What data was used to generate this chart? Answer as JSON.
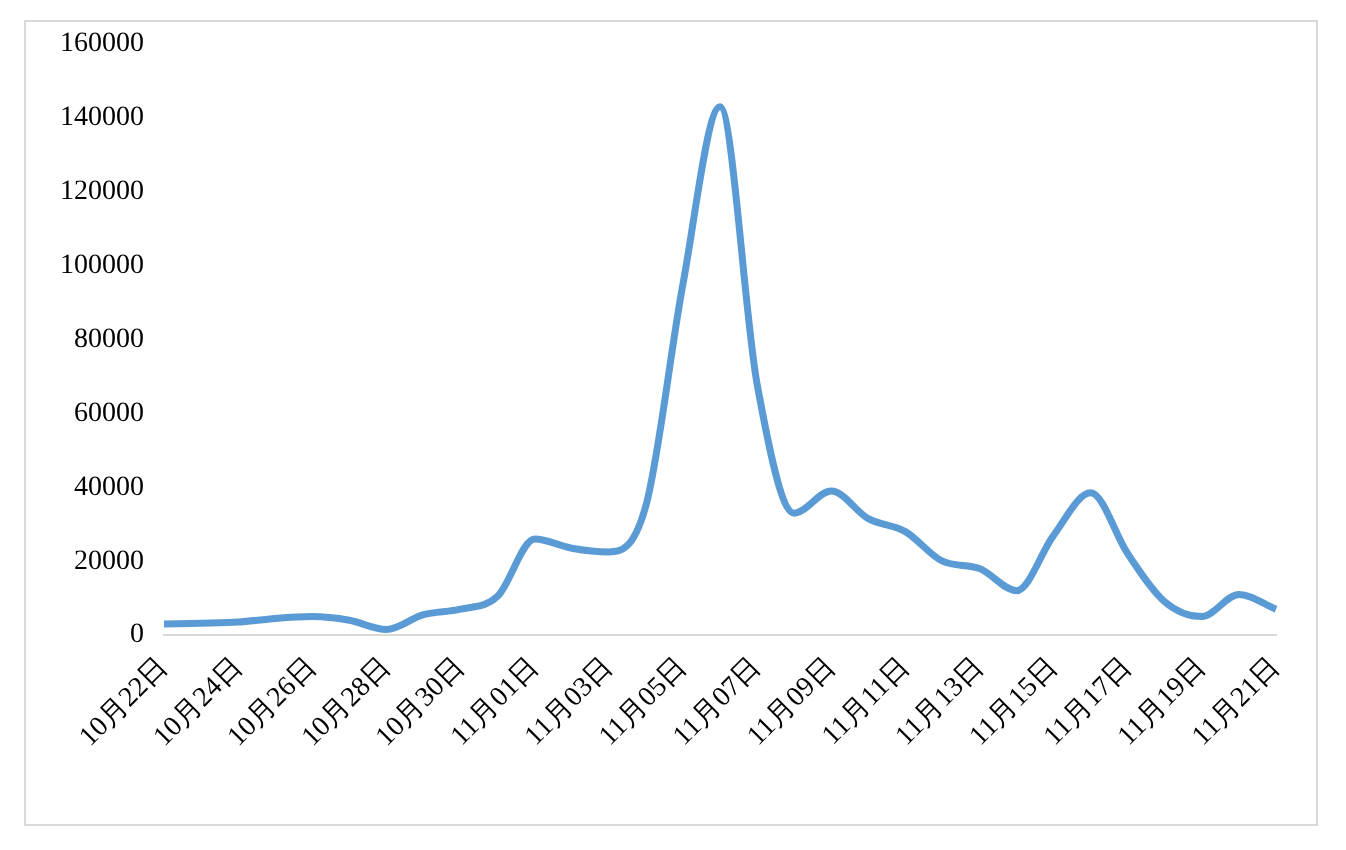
{
  "chart_data": {
    "type": "line",
    "categories": [
      "10月22日",
      null,
      "10月24日",
      null,
      "10月26日",
      null,
      "10月28日",
      null,
      "10月30日",
      null,
      "11月01日",
      null,
      "11月03日",
      null,
      "11月05日",
      null,
      "11月07日",
      null,
      "11月09日",
      null,
      "11月11日",
      null,
      "11月13日",
      null,
      "11月15日",
      null,
      "11月17日",
      null,
      "11月19日",
      null,
      "11月21日"
    ],
    "series": [
      {
        "color": "#5b9bd5",
        "values": [
          3000,
          3200,
          3500,
          4500,
          5000,
          4000,
          1500,
          5500,
          7000,
          10500,
          26000,
          23500,
          22500,
          35000,
          95000,
          143000,
          68000,
          33000,
          39000,
          31500,
          28000,
          20000,
          18000,
          12000,
          27000,
          38500,
          22000,
          9000,
          5000,
          11000,
          7000
        ]
      }
    ],
    "ylim": [
      0,
      160000
    ],
    "yticks": [
      0,
      20000,
      40000,
      60000,
      80000,
      100000,
      120000,
      140000,
      160000
    ],
    "grid": false,
    "legend": false,
    "marker": "none",
    "line_style": "solid"
  }
}
